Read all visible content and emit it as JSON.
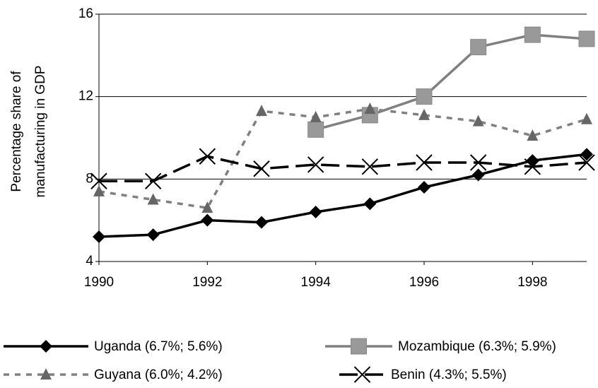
{
  "chart_data": {
    "type": "line",
    "ylabel": [
      "Percentage share of",
      "manufacturing in GDP"
    ],
    "x": [
      1990,
      1991,
      1992,
      1993,
      1994,
      1995,
      1996,
      1997,
      1998,
      1999
    ],
    "xlim": [
      1990,
      1999
    ],
    "xticks": [
      1990,
      1992,
      1994,
      1996,
      1998
    ],
    "ylim": [
      4,
      16
    ],
    "yticks": [
      4,
      8,
      12,
      16
    ],
    "grid": true,
    "series": [
      {
        "name": "Uganda (6.7%; 5.6%)",
        "color": "#000000",
        "marker": "diamond",
        "dash": "solid",
        "values": [
          5.2,
          5.3,
          6.0,
          5.9,
          6.4,
          6.8,
          7.6,
          8.2,
          8.9,
          9.2
        ]
      },
      {
        "name": "Mozambique (6.3%; 5.9%)",
        "color": "#808080",
        "marker": "square",
        "dash": "solid",
        "values": [
          null,
          null,
          null,
          null,
          10.4,
          11.1,
          12.0,
          14.4,
          15.0,
          14.8
        ]
      },
      {
        "name": "Guyana (6.0%; 4.2%)",
        "color": "#808080",
        "marker": "triangle",
        "dash": "short",
        "values": [
          7.4,
          7.0,
          6.6,
          11.3,
          11.0,
          11.4,
          11.1,
          10.8,
          10.1,
          10.9
        ]
      },
      {
        "name": "Benin (4.3%; 5.5%)",
        "color": "#000000",
        "marker": "cross",
        "dash": "long",
        "values": [
          7.9,
          7.9,
          9.1,
          8.5,
          8.7,
          8.6,
          8.8,
          8.8,
          8.6,
          8.8
        ]
      }
    ]
  }
}
